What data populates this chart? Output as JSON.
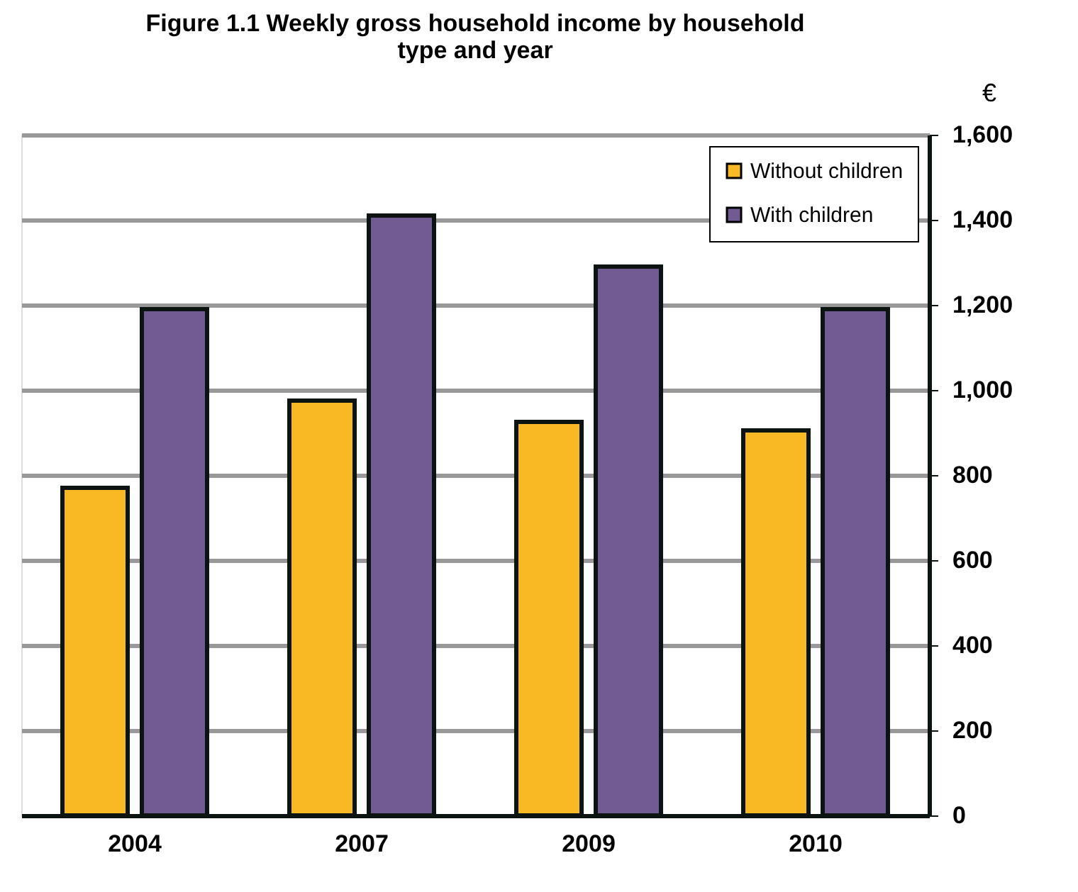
{
  "chart_data": {
    "type": "bar",
    "title": "Figure 1.1  Weekly gross household income by household\ntype and year",
    "ylabel": "€",
    "categories": [
      "2004",
      "2007",
      "2009",
      "2010"
    ],
    "series": [
      {
        "name": "Without children",
        "color": "#f8b925",
        "values": [
          770,
          975,
          925,
          905
        ]
      },
      {
        "name": "With children",
        "color": "#715b92",
        "values": [
          1190,
          1410,
          1290,
          1190
        ]
      }
    ],
    "ylim": [
      0,
      1600
    ],
    "yticks": [
      0,
      200,
      400,
      600,
      800,
      {
        "value": 1000,
        "label": "1,000"
      },
      {
        "value": 1200,
        "label": "1,200"
      },
      {
        "value": 1400,
        "label": "1,400"
      },
      {
        "value": 1600,
        "label": "1,600"
      }
    ],
    "grid": "y",
    "legend": "top right"
  }
}
